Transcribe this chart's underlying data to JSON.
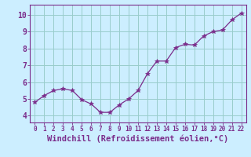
{
  "x": [
    0,
    1,
    2,
    3,
    4,
    5,
    6,
    7,
    8,
    9,
    10,
    11,
    12,
    13,
    14,
    15,
    16,
    17,
    18,
    19,
    20,
    21,
    22
  ],
  "y": [
    4.8,
    5.2,
    5.5,
    5.6,
    5.5,
    4.95,
    4.7,
    4.2,
    4.2,
    4.65,
    5.0,
    5.5,
    6.5,
    7.25,
    7.25,
    8.05,
    8.25,
    8.2,
    8.75,
    9.0,
    9.1,
    9.7,
    10.1
  ],
  "line_color": "#7b2d8b",
  "marker": "*",
  "marker_size": 4,
  "bg_color": "#cceeff",
  "grid_color": "#99cccc",
  "xlabel": "Windchill (Refroidissement éolien,°C)",
  "xlabel_color": "#7b2d8b",
  "ytick_vals": [
    4,
    5,
    6,
    7,
    8,
    9,
    10
  ],
  "xlim": [
    -0.5,
    22.5
  ],
  "ylim": [
    3.6,
    10.6
  ],
  "xtick_labels": [
    "0",
    "1",
    "2",
    "3",
    "4",
    "5",
    "6",
    "7",
    "8",
    "9",
    "10",
    "11",
    "12",
    "13",
    "14",
    "15",
    "16",
    "17",
    "18",
    "19",
    "20",
    "21",
    "22"
  ],
  "tick_color": "#7b2d8b",
  "xtick_fontsize": 5.5,
  "ytick_fontsize": 7,
  "xlabel_fontsize": 7.5
}
